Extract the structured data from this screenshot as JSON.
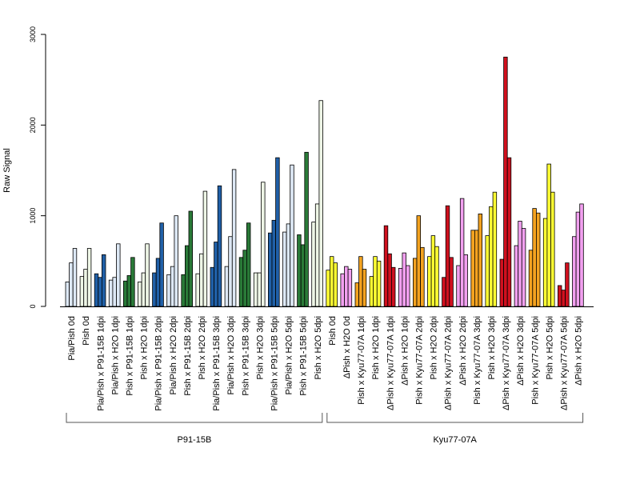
{
  "chart_data": {
    "type": "bar",
    "title": "",
    "xlabel": "",
    "ylabel": "Raw Signal",
    "ylim": [
      0,
      3000
    ],
    "yticks": [
      0,
      1000,
      2000,
      3000
    ],
    "grid": false,
    "legend": "none",
    "categories": [
      "Pia/Pish 0d",
      "Pish 0d",
      "Pia/Pish x P91-15B 1dpi",
      "Pia/Pish x H2O 1dpi",
      "Pish x P91-15B 1dpi",
      "Pish x H2O 1dpi",
      "Pia/Pish x P91-15B 2dpi",
      "Pia/Pish x H2O 2dpi",
      "Pish x P91-15B 2dpi",
      "Pish x H2O 2dpi",
      "Pia/Pish x P91-15B 3dpi",
      "Pia/Pish x H2O 3dpi",
      "Pish x P91-15B 3dpi",
      "Pish x H2O 3dpi",
      "Pia/Pish x P91-15B 5dpi",
      "Pia/Pish x H2O 5dpi",
      "Pish x P91-15B 5dpi",
      "Pish x H2O 5dpi",
      "Pish 0d",
      "ΔPish x H2O 0d",
      "Pish x Kyu77-07A 1dpi",
      "Pish x H2O 1dpi",
      "ΔPish x Kyu77-07A 1dpi",
      "ΔPish x H2O 1dpi",
      "Pish x Kyu77-07A 2dpi",
      "Pish x H2O 2dpi",
      "ΔPish x Kyu77-07A 2dpi",
      "ΔPish x H2O 2dpi",
      "Pish x Kyu77-07A 3dpi",
      "Pish x H2O 3dpi",
      "ΔPish x Kyu77-07A 3dpi",
      "ΔPish x H2O 3dpi",
      "Pish x Kyu77-07A 5dpi",
      "Pish x H2O 5dpi",
      "ΔPish x Kyu77-07A 5dpi",
      "ΔPish x H2O 5dpi"
    ],
    "values": [
      [
        270,
        480,
        640
      ],
      [
        330,
        410,
        640
      ],
      [
        360,
        320,
        570
      ],
      [
        290,
        320,
        690
      ],
      [
        280,
        340,
        540
      ],
      [
        270,
        370,
        690
      ],
      [
        370,
        530,
        920
      ],
      [
        350,
        440,
        1000
      ],
      [
        350,
        670,
        1050
      ],
      [
        360,
        580,
        1270
      ],
      [
        430,
        710,
        1330
      ],
      [
        440,
        770,
        1510
      ],
      [
        540,
        620,
        920
      ],
      [
        370,
        370,
        1370
      ],
      [
        810,
        950,
        1640
      ],
      [
        820,
        910,
        1560
      ],
      [
        790,
        680,
        1700
      ],
      [
        930,
        1130,
        2270
      ],
      [
        400,
        550,
        480
      ],
      [
        360,
        440,
        410
      ],
      [
        260,
        550,
        410
      ],
      [
        330,
        550,
        500
      ],
      [
        890,
        580,
        430
      ],
      [
        420,
        590,
        450
      ],
      [
        530,
        1000,
        650
      ],
      [
        550,
        780,
        660
      ],
      [
        320,
        1110,
        540
      ],
      [
        450,
        1190,
        570
      ],
      [
        840,
        840,
        1020
      ],
      [
        780,
        1100,
        1260
      ],
      [
        520,
        2750,
        1640
      ],
      [
        670,
        940,
        860
      ],
      [
        620,
        1080,
        1030
      ],
      [
        970,
        1570,
        1260
      ],
      [
        230,
        180,
        480
      ],
      [
        770,
        1040,
        1130
      ]
    ],
    "bar_colors": [
      "#dde8f5",
      "#eef6e6",
      "#2060a8",
      "#dde8f5",
      "#2a7a38",
      "#eef6e6",
      "#2060a8",
      "#dde8f5",
      "#2a7a38",
      "#eef6e6",
      "#2060a8",
      "#dde8f5",
      "#2a7a38",
      "#eef6e6",
      "#2060a8",
      "#dde8f5",
      "#2a7a38",
      "#eef6e6",
      "#ffff33",
      "#f2a0f0",
      "#f4a320",
      "#ffff33",
      "#d0101e",
      "#f2a0f0",
      "#f4a320",
      "#ffff33",
      "#d0101e",
      "#f2a0f0",
      "#f4a320",
      "#ffff33",
      "#d0101e",
      "#f2a0f0",
      "#f4a320",
      "#ffff33",
      "#d0101e",
      "#f2a0f0"
    ],
    "groups": [
      {
        "label": "P91-15B",
        "from": 0,
        "to": 17
      },
      {
        "label": "Kyu77-07A",
        "from": 18,
        "to": 35
      }
    ]
  }
}
